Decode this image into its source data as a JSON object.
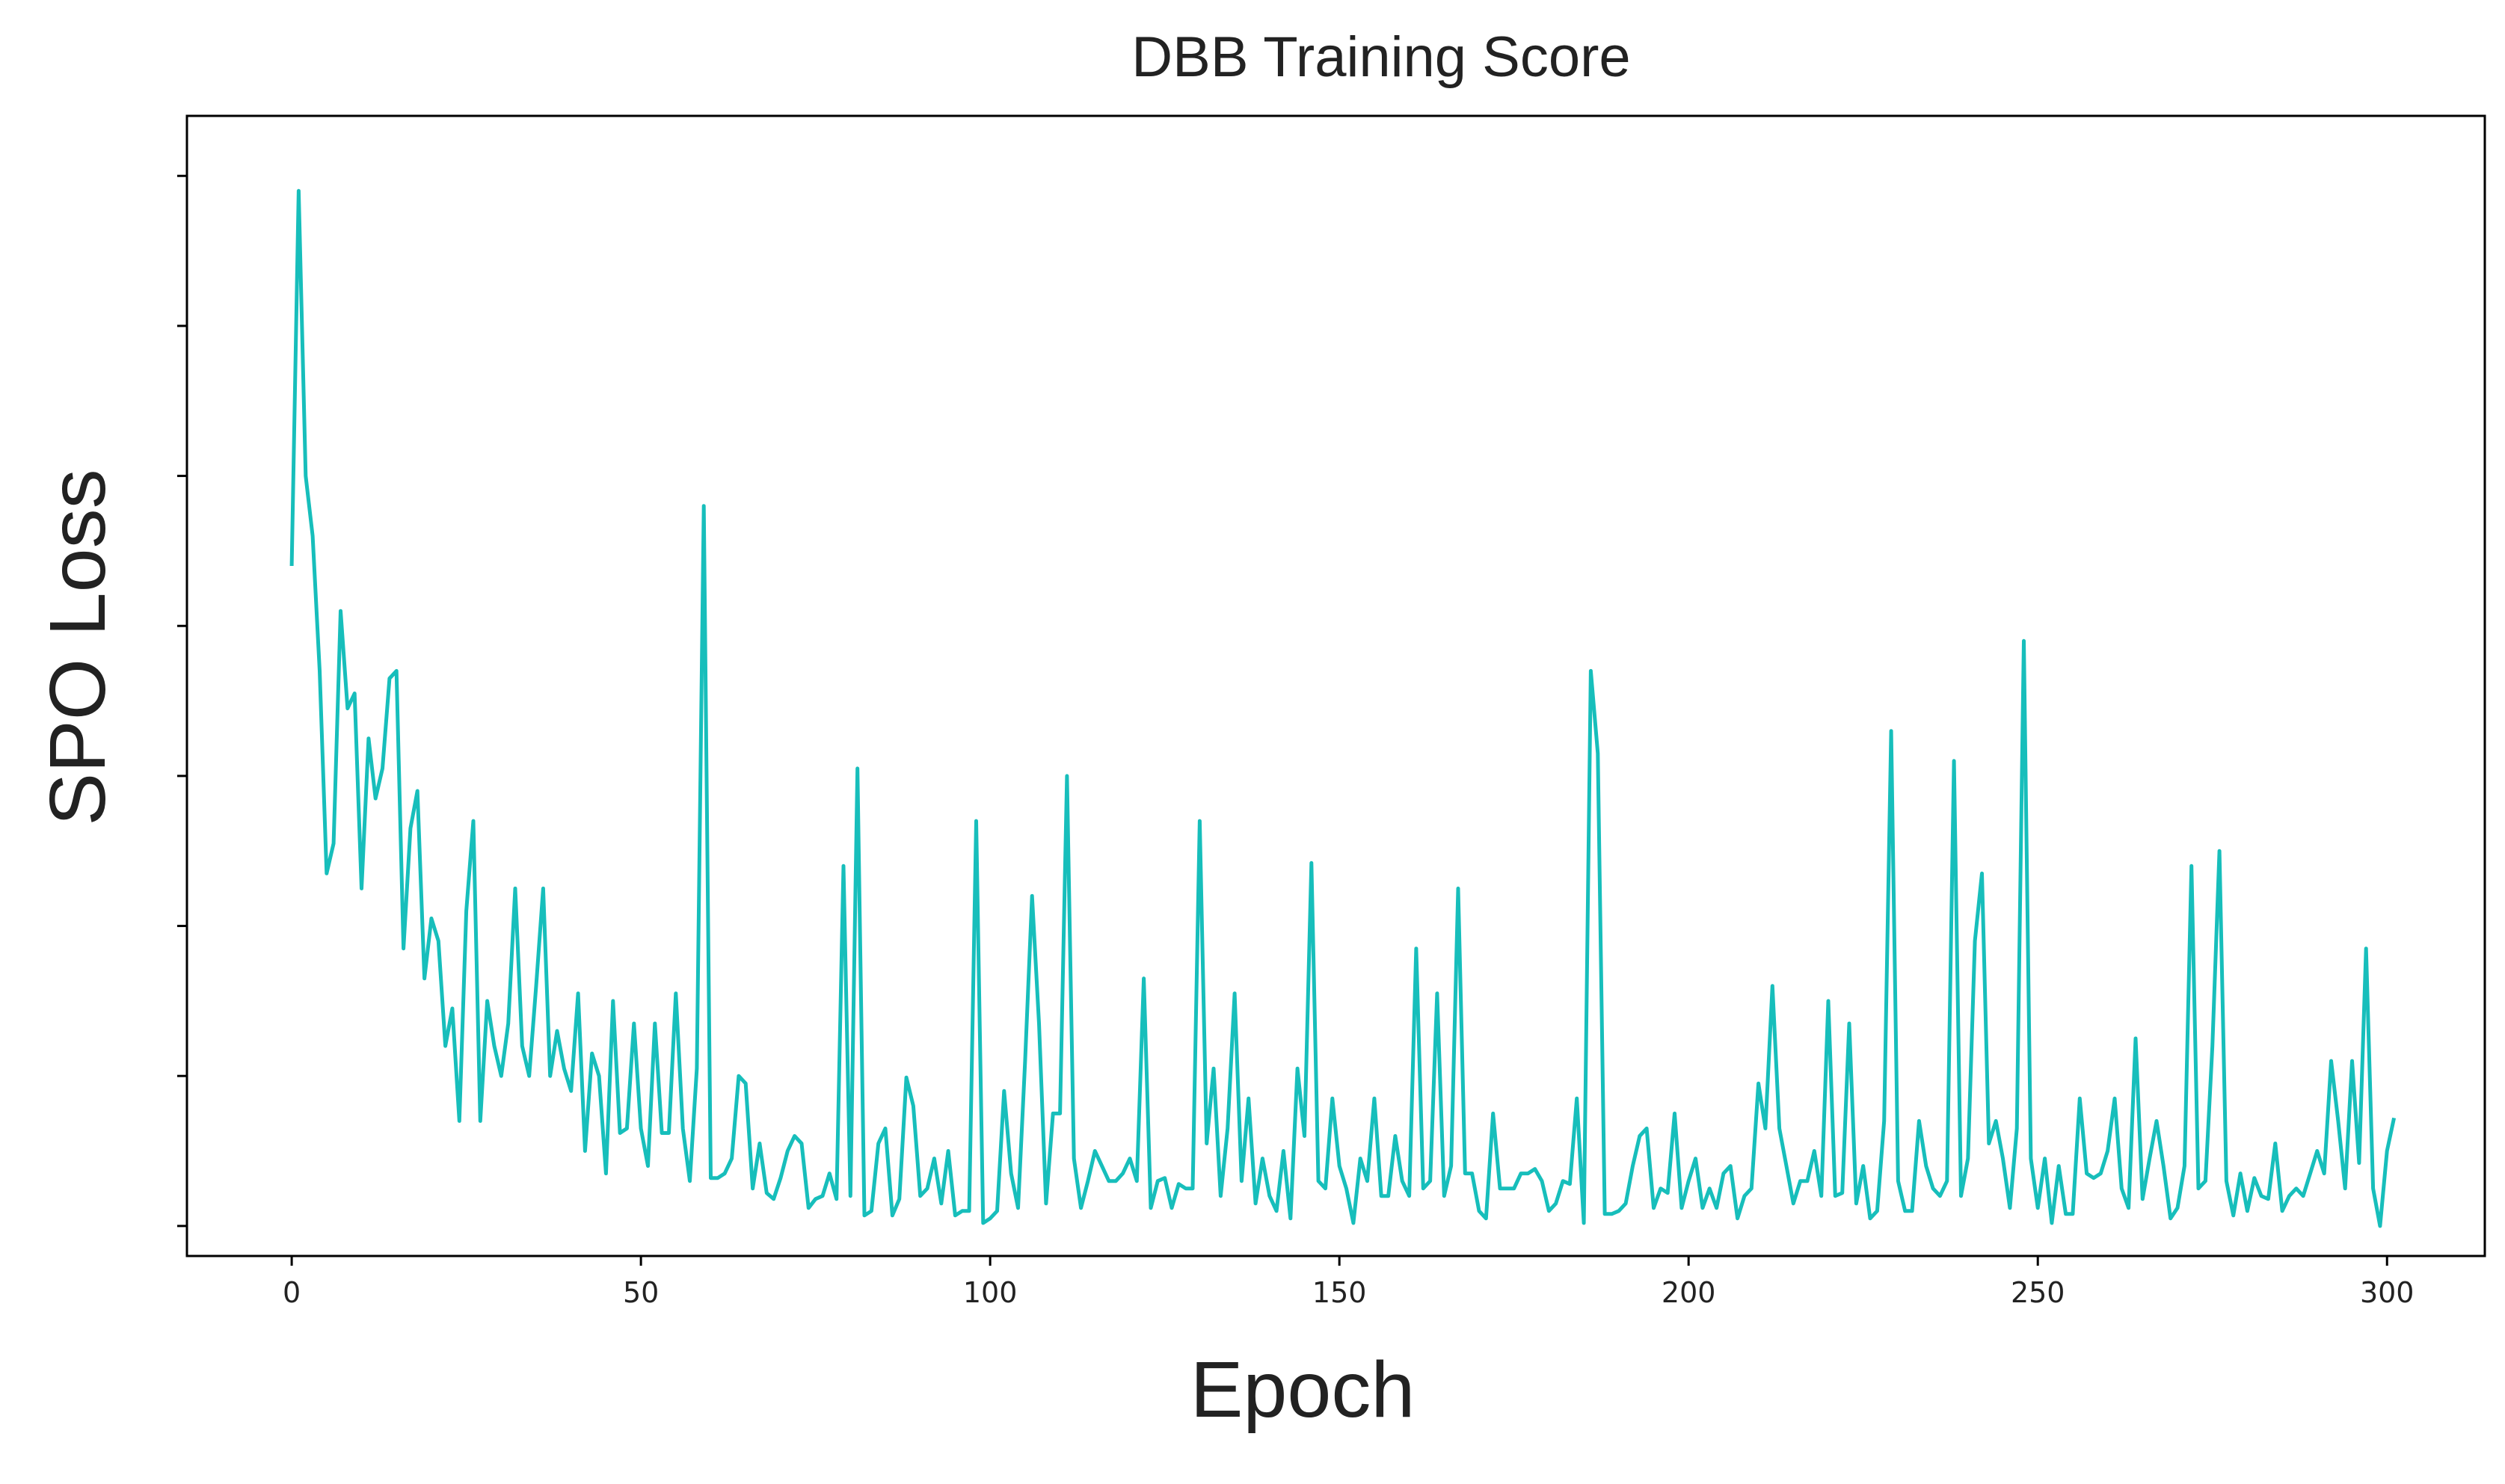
{
  "chart_data": {
    "type": "line",
    "title": "DBB Training Score",
    "xlabel": "Epoch",
    "ylabel": "SPO Loss",
    "xlim": [
      -15,
      314
    ],
    "ylim": [
      -0.2,
      7.4
    ],
    "x_ticks": [
      0,
      50,
      100,
      150,
      200,
      250,
      300
    ],
    "y_ticks": [
      0,
      1,
      2,
      3,
      4,
      5,
      6,
      7
    ],
    "y_tick_labels_shown": false,
    "grid": false,
    "series": [
      {
        "color": "#17BEBB",
        "x_start": 0,
        "x_step": 1,
        "values": [
          4.4,
          6.9,
          5.0,
          4.6,
          3.7,
          2.35,
          2.55,
          4.1,
          3.45,
          3.55,
          2.25,
          3.25,
          2.85,
          3.05,
          3.65,
          3.7,
          1.85,
          2.65,
          2.9,
          1.65,
          2.05,
          1.9,
          1.2,
          1.45,
          0.7,
          2.1,
          2.7,
          0.7,
          1.5,
          1.2,
          1.0,
          1.35,
          2.25,
          1.2,
          1.0,
          1.6,
          2.25,
          1.0,
          1.3,
          1.05,
          0.9,
          1.55,
          0.5,
          1.15,
          1.0,
          0.35,
          1.5,
          0.62,
          0.65,
          1.35,
          0.65,
          0.4,
          1.35,
          0.62,
          0.62,
          1.55,
          0.65,
          0.3,
          1.05,
          4.8,
          0.32,
          0.32,
          0.35,
          0.45,
          1.0,
          0.95,
          0.25,
          0.55,
          0.22,
          0.18,
          0.32,
          0.5,
          0.6,
          0.55,
          0.12,
          0.18,
          0.2,
          0.35,
          0.18,
          2.4,
          0.2,
          3.05,
          0.07,
          0.1,
          0.55,
          0.65,
          0.07,
          0.18,
          0.99,
          0.8,
          0.2,
          0.25,
          0.45,
          0.15,
          0.5,
          0.07,
          0.1,
          0.1,
          2.7,
          0.02,
          0.05,
          0.1,
          0.9,
          0.35,
          0.12,
          1.1,
          2.2,
          1.35,
          0.15,
          0.75,
          0.75,
          3.0,
          0.45,
          0.12,
          0.3,
          0.5,
          0.4,
          0.3,
          0.3,
          0.35,
          0.45,
          0.3,
          1.65,
          0.12,
          0.3,
          0.32,
          0.12,
          0.28,
          0.25,
          0.25,
          2.7,
          0.55,
          1.05,
          0.2,
          0.65,
          1.55,
          0.3,
          0.85,
          0.15,
          0.45,
          0.2,
          0.1,
          0.5,
          0.05,
          1.05,
          0.6,
          2.42,
          0.3,
          0.25,
          0.85,
          0.4,
          0.25,
          0.02,
          0.45,
          0.3,
          0.85,
          0.2,
          0.2,
          0.6,
          0.3,
          0.2,
          1.85,
          0.25,
          0.3,
          1.55,
          0.2,
          0.4,
          2.25,
          0.35,
          0.35,
          0.1,
          0.05,
          0.75,
          0.25,
          0.25,
          0.25,
          0.35,
          0.35,
          0.38,
          0.3,
          0.1,
          0.15,
          0.3,
          0.28,
          0.85,
          0.02,
          3.7,
          3.15,
          0.08,
          0.08,
          0.1,
          0.15,
          0.4,
          0.6,
          0.65,
          0.12,
          0.25,
          0.22,
          0.75,
          0.12,
          0.3,
          0.45,
          0.12,
          0.25,
          0.12,
          0.35,
          0.4,
          0.05,
          0.2,
          0.25,
          0.95,
          0.65,
          1.6,
          0.65,
          0.4,
          0.15,
          0.3,
          0.3,
          0.5,
          0.2,
          1.5,
          0.2,
          0.22,
          1.35,
          0.15,
          0.4,
          0.05,
          0.1,
          0.7,
          3.3,
          0.3,
          0.1,
          0.1,
          0.7,
          0.4,
          0.25,
          0.2,
          0.3,
          3.1,
          0.2,
          0.45,
          1.9,
          2.35,
          0.55,
          0.7,
          0.45,
          0.12,
          0.65,
          3.9,
          0.45,
          0.12,
          0.45,
          0.02,
          0.4,
          0.08,
          0.08,
          0.85,
          0.35,
          0.32,
          0.35,
          0.5,
          0.85,
          0.25,
          0.12,
          1.25,
          0.18,
          0.45,
          0.7,
          0.4,
          0.05,
          0.12,
          0.4,
          2.4,
          0.25,
          0.3,
          1.2,
          2.5,
          0.3,
          0.07,
          0.35,
          0.1,
          0.32,
          0.2,
          0.18,
          0.55,
          0.1,
          0.2,
          0.25,
          0.2,
          0.35,
          0.5,
          0.35,
          1.1,
          0.7,
          0.25,
          1.1,
          0.42,
          1.85,
          0.25,
          0.0,
          0.5,
          0.72
        ]
      }
    ]
  }
}
